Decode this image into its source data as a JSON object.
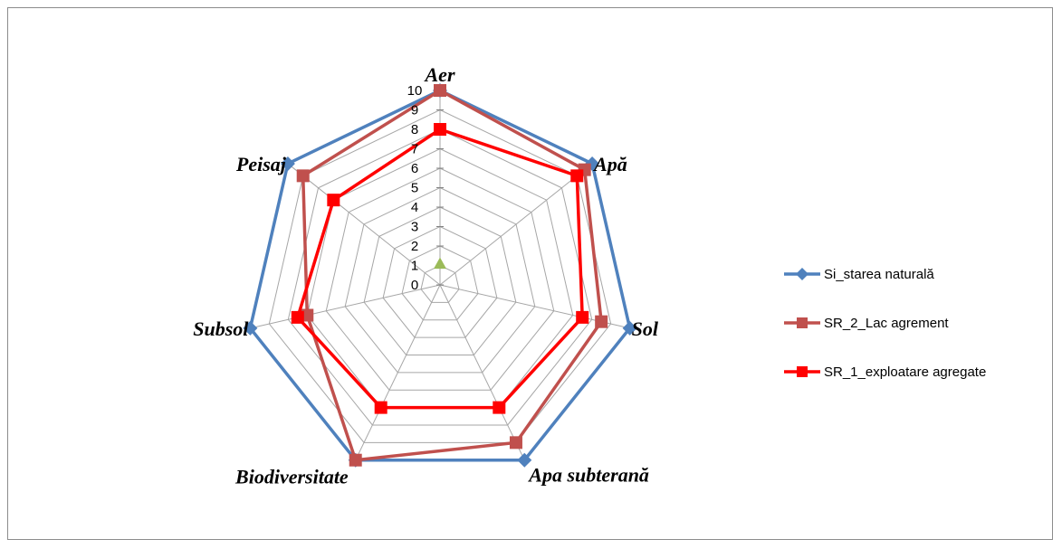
{
  "chart_data": {
    "type": "radar",
    "title": "",
    "axes": [
      "Aer",
      "Apă",
      "Sol",
      "Apa subterană",
      "Biodiversitate",
      "Subsol",
      "Peisaj"
    ],
    "rlim": [
      0,
      10
    ],
    "ticks": [
      "0",
      "1",
      "2",
      "3",
      "4",
      "5",
      "6",
      "7",
      "8",
      "9",
      "10"
    ],
    "grid": true,
    "legend_position": "right",
    "series": [
      {
        "name": "Si_starea naturală",
        "color": "#4f81bd",
        "marker": "diamond",
        "values": [
          10,
          10,
          10,
          10,
          10,
          10,
          10
        ]
      },
      {
        "name": "SR_2_Lac agrement",
        "color": "#c0504d",
        "marker": "square",
        "values": [
          10,
          9.5,
          8.5,
          9,
          10,
          7,
          9
        ]
      },
      {
        "name": "SR_1_exploatare agregate",
        "color": "#ff0000",
        "marker": "square",
        "values": [
          8,
          9,
          7.5,
          7,
          7,
          7.5,
          7
        ]
      }
    ],
    "extra_marker": {
      "color": "#9bbb59",
      "marker": "triangle",
      "value": 1,
      "axis": "Aer"
    }
  }
}
